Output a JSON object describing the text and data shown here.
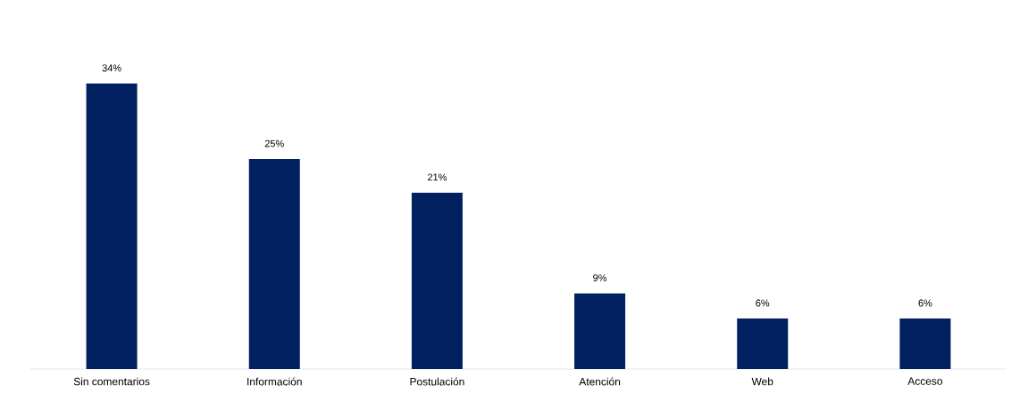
{
  "chart_data": {
    "type": "bar",
    "categories": [
      "Sin comentarios",
      "Información",
      "Postulación",
      "Atención",
      "Web",
      "Acceso"
    ],
    "values": [
      34,
      25,
      21,
      9,
      6,
      6
    ],
    "value_labels": [
      "34%",
      "25%",
      "21%",
      "9%",
      "6%",
      "6%"
    ],
    "color": "#012060",
    "tick_labels": "x"
  }
}
